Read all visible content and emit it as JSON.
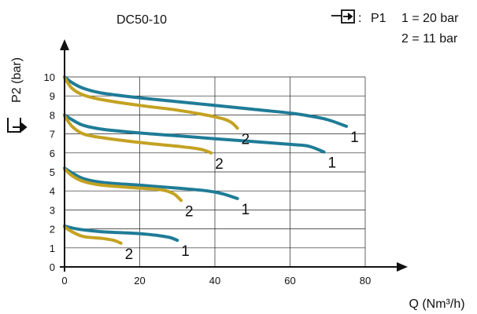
{
  "chart_data": {
    "type": "line",
    "title": "DC50-10",
    "xlabel": "Q (Nm³/h)",
    "ylabel": "P2 (bar)",
    "xlim": [
      0,
      80
    ],
    "ylim": [
      0,
      10
    ],
    "xticks": [
      "0",
      "20",
      "40",
      "60",
      "80"
    ],
    "yticks": [
      "0",
      "1",
      "2",
      "3",
      "4",
      "5",
      "6",
      "7",
      "8",
      "9",
      "10"
    ],
    "grid": true,
    "legend": {
      "inlet_label": "P1",
      "entries": [
        "1 = 20 bar",
        "2 = 11 bar"
      ]
    },
    "colors": {
      "1": "#1f7c97",
      "2": "#c4a222"
    },
    "series": [
      {
        "name": "1",
        "label": "1",
        "x": [
          0,
          2,
          5,
          10,
          20,
          30,
          40,
          50,
          60,
          65,
          70,
          75
        ],
        "y": [
          10,
          9.7,
          9.4,
          9.15,
          8.9,
          8.7,
          8.5,
          8.3,
          8.1,
          7.95,
          7.75,
          7.4
        ]
      },
      {
        "name": "2",
        "label": "2",
        "x": [
          0,
          2,
          5,
          10,
          20,
          30,
          40,
          44,
          46
        ],
        "y": [
          9.95,
          9.4,
          9.05,
          8.8,
          8.5,
          8.25,
          7.9,
          7.65,
          7.3
        ]
      },
      {
        "name": "1",
        "label": "1",
        "x": [
          0,
          2,
          5,
          10,
          20,
          30,
          40,
          50,
          60,
          65,
          69
        ],
        "y": [
          8,
          7.75,
          7.45,
          7.25,
          7.05,
          6.9,
          6.75,
          6.6,
          6.45,
          6.35,
          6.05
        ]
      },
      {
        "name": "2",
        "label": "2",
        "x": [
          0,
          2,
          5,
          10,
          20,
          30,
          36,
          39
        ],
        "y": [
          7.95,
          7.4,
          7.0,
          6.8,
          6.55,
          6.35,
          6.2,
          6.0
        ]
      },
      {
        "name": "1",
        "label": "1",
        "x": [
          0,
          2,
          5,
          10,
          20,
          30,
          38,
          42,
          46
        ],
        "y": [
          5.2,
          4.95,
          4.65,
          4.45,
          4.3,
          4.15,
          4.0,
          3.85,
          3.6
        ]
      },
      {
        "name": "2",
        "label": "2",
        "x": [
          0,
          2,
          5,
          10,
          20,
          26,
          29,
          31
        ],
        "y": [
          5.15,
          4.8,
          4.5,
          4.3,
          4.15,
          4.05,
          3.85,
          3.5
        ]
      },
      {
        "name": "1",
        "label": "1",
        "x": [
          0,
          2,
          5,
          10,
          20,
          25,
          28,
          30
        ],
        "y": [
          2.15,
          2.05,
          1.95,
          1.85,
          1.75,
          1.65,
          1.55,
          1.4
        ]
      },
      {
        "name": "2",
        "label": "2",
        "x": [
          0,
          2,
          5,
          10,
          13,
          15
        ],
        "y": [
          2.1,
          1.85,
          1.6,
          1.5,
          1.4,
          1.25
        ]
      }
    ]
  }
}
